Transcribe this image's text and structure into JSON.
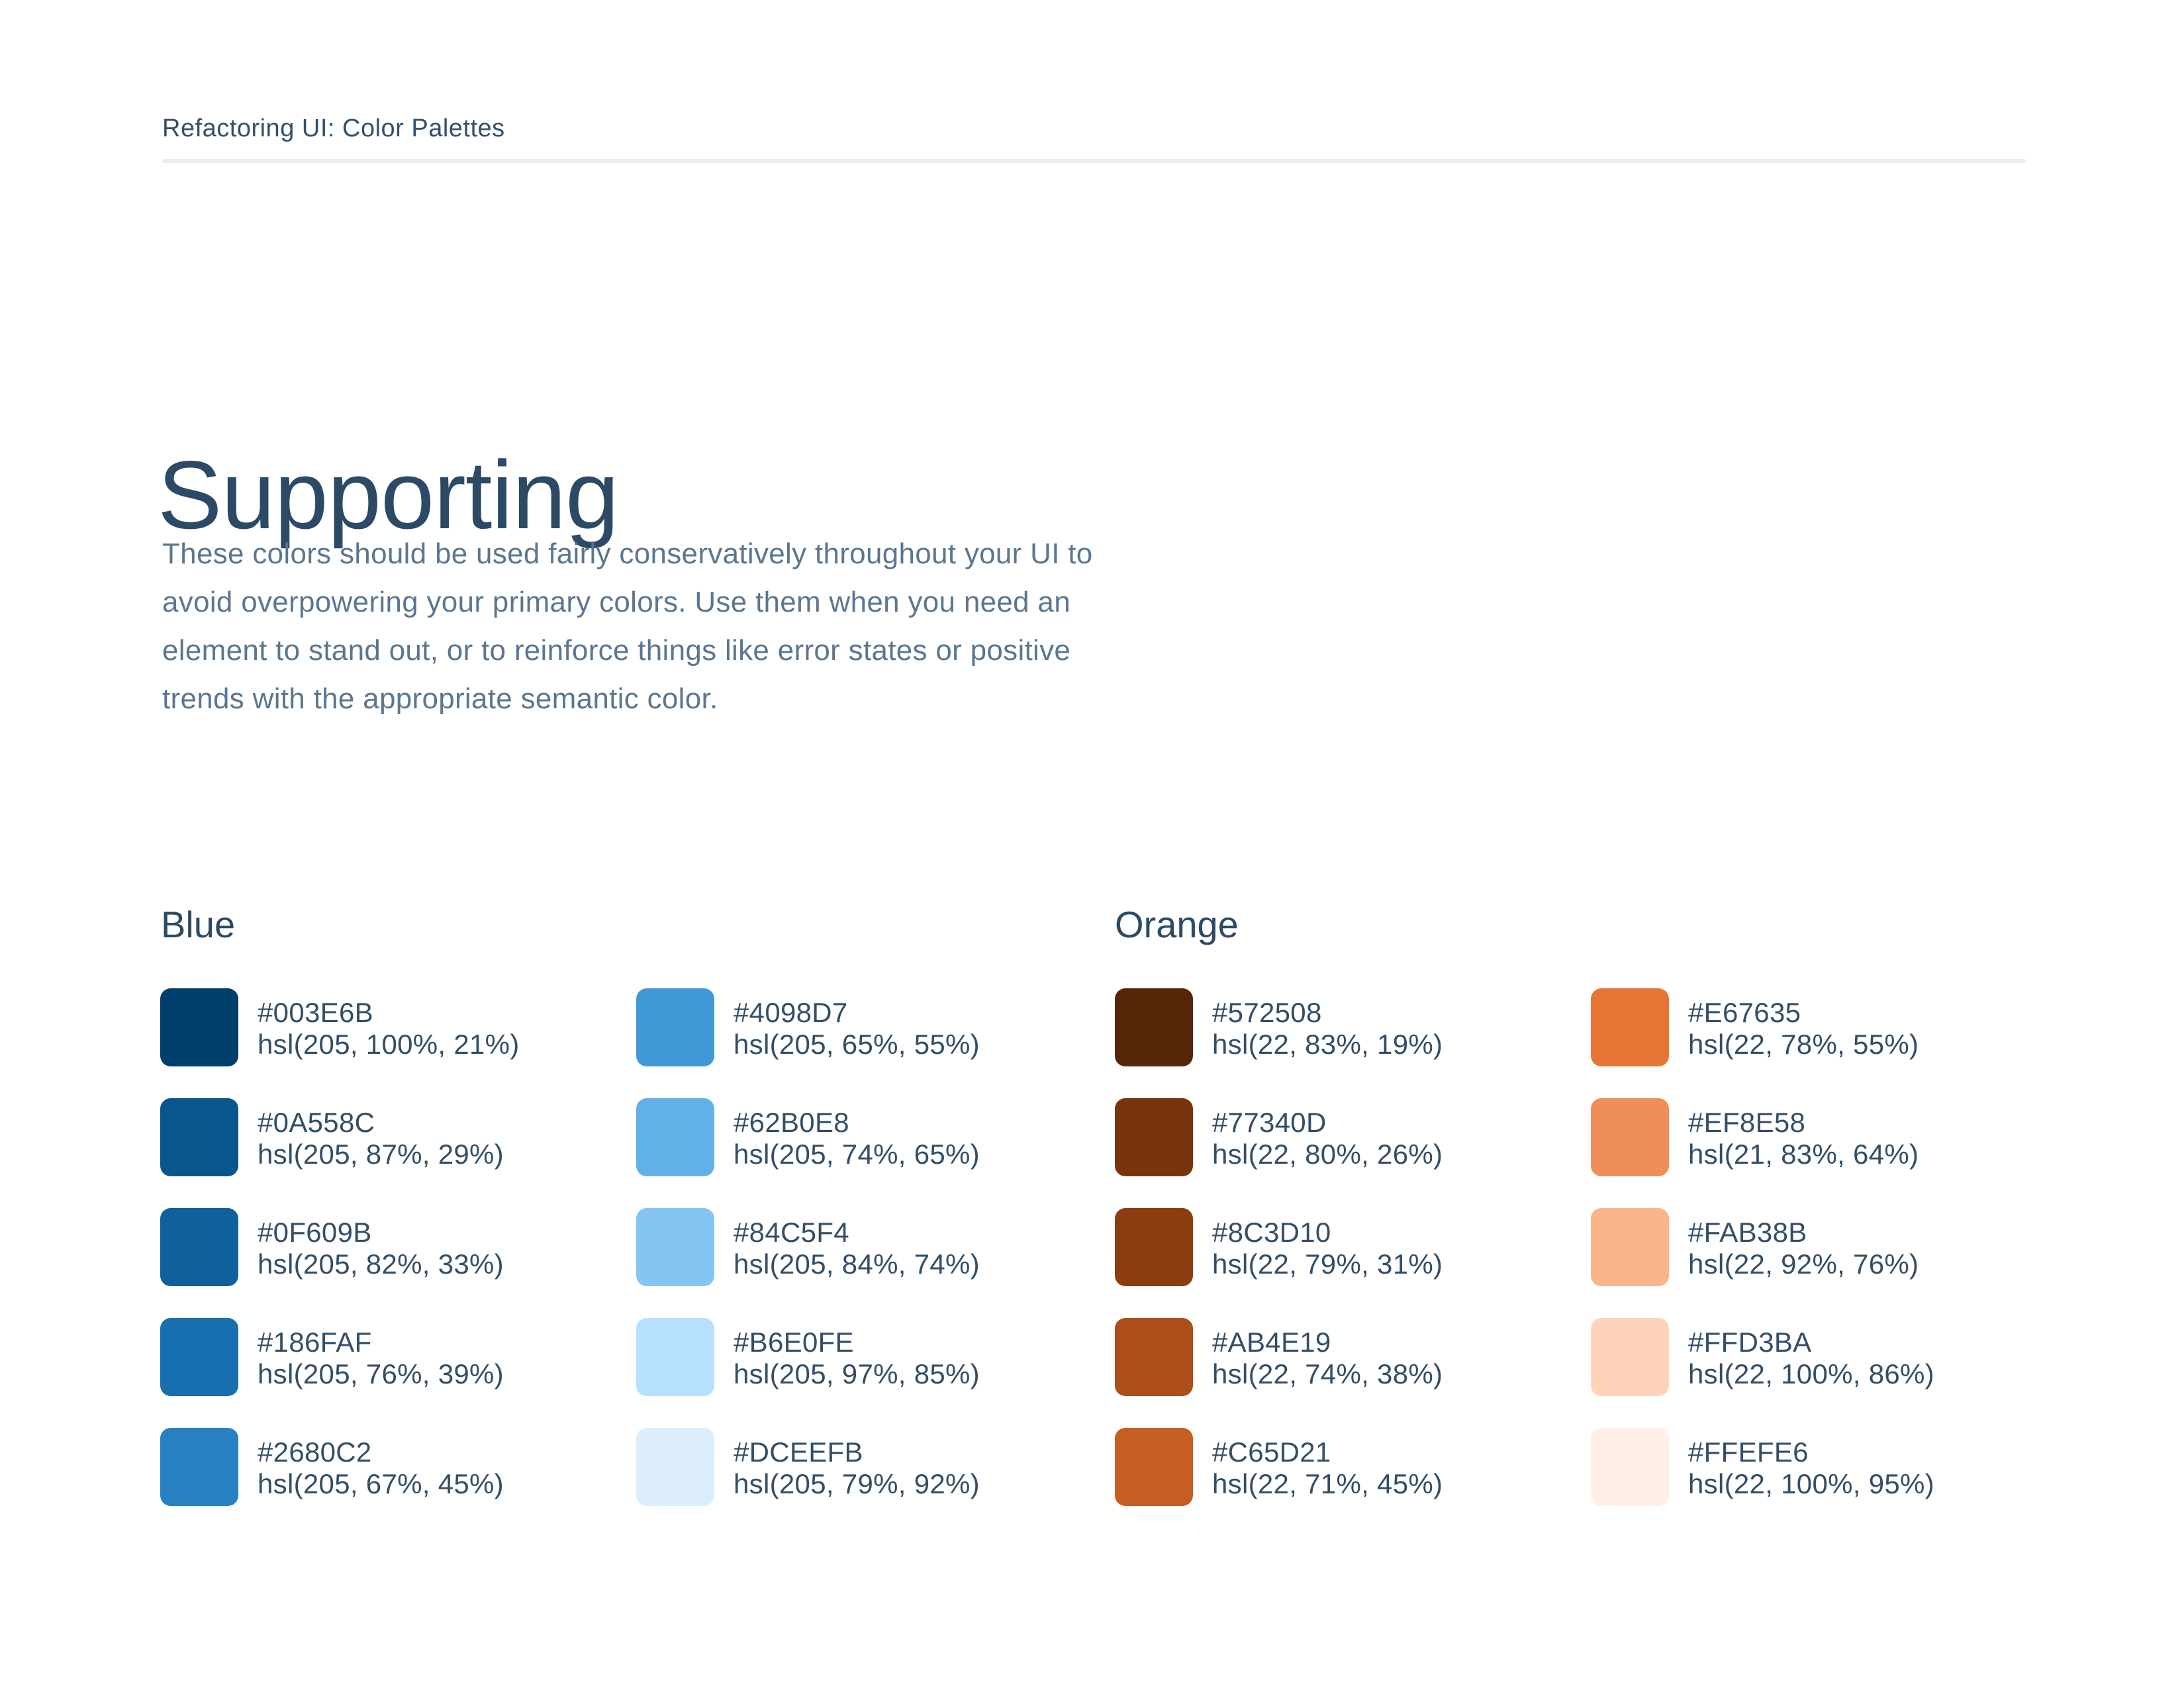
{
  "header": {
    "breadcrumb": "Refactoring UI: Color Palettes"
  },
  "main": {
    "title": "Supporting",
    "description_lines": [
      "These colors should be used fairly conservatively throughout your UI to",
      "avoid overpowering your primary colors. Use them when you need an",
      "element to stand out, or to reinforce things like error states or positive",
      "trends with the appropriate semantic color."
    ]
  },
  "palettes": [
    {
      "name": "Blue",
      "columns": [
        [
          {
            "hex": "#003E6B",
            "hsl": "hsl(205, 100%, 21%)"
          },
          {
            "hex": "#0A558C",
            "hsl": "hsl(205, 87%, 29%)"
          },
          {
            "hex": "#0F609B",
            "hsl": "hsl(205, 82%, 33%)"
          },
          {
            "hex": "#186FAF",
            "hsl": "hsl(205, 76%, 39%)"
          },
          {
            "hex": "#2680C2",
            "hsl": "hsl(205, 67%, 45%)"
          }
        ],
        [
          {
            "hex": "#4098D7",
            "hsl": "hsl(205, 65%, 55%)"
          },
          {
            "hex": "#62B0E8",
            "hsl": "hsl(205, 74%, 65%)"
          },
          {
            "hex": "#84C5F4",
            "hsl": "hsl(205, 84%, 74%)"
          },
          {
            "hex": "#B6E0FE",
            "hsl": "hsl(205, 97%, 85%)"
          },
          {
            "hex": "#DCEEFB",
            "hsl": "hsl(205, 79%, 92%)"
          }
        ]
      ]
    },
    {
      "name": "Orange",
      "columns": [
        [
          {
            "hex": "#572508",
            "hsl": "hsl(22, 83%, 19%)"
          },
          {
            "hex": "#77340D",
            "hsl": "hsl(22, 80%, 26%)"
          },
          {
            "hex": "#8C3D10",
            "hsl": "hsl(22, 79%, 31%)"
          },
          {
            "hex": "#AB4E19",
            "hsl": "hsl(22, 74%, 38%)"
          },
          {
            "hex": "#C65D21",
            "hsl": "hsl(22, 71%, 45%)"
          }
        ],
        [
          {
            "hex": "#E67635",
            "hsl": "hsl(22, 78%, 55%)"
          },
          {
            "hex": "#EF8E58",
            "hsl": "hsl(21, 83%, 64%)"
          },
          {
            "hex": "#FAB38B",
            "hsl": "hsl(22, 92%, 76%)"
          },
          {
            "hex": "#FFD3BA",
            "hsl": "hsl(22, 100%, 86%)"
          },
          {
            "hex": "#FFEFE6",
            "hsl": "hsl(22, 100%, 95%)"
          }
        ]
      ]
    }
  ],
  "colors": {
    "heading": "#2C4A66",
    "label": "#334E68",
    "body": "#5C7690",
    "divider": "#E9EEF2"
  }
}
